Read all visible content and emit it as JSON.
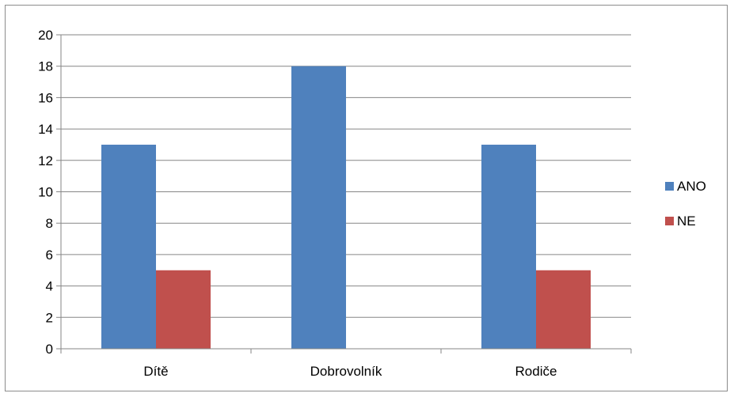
{
  "chart_data": {
    "type": "bar",
    "categories": [
      "Dítě",
      "Dobrovolník",
      "Rodiče"
    ],
    "series": [
      {
        "name": "ANO",
        "values": [
          13,
          18,
          13
        ],
        "color": "#4F81BD"
      },
      {
        "name": "NE",
        "values": [
          5,
          0,
          5
        ],
        "color": "#C0504D"
      }
    ],
    "ylim": [
      0,
      20
    ],
    "yticks": [
      0,
      2,
      4,
      6,
      8,
      10,
      12,
      14,
      16,
      18,
      20
    ],
    "grid": true,
    "legend": "right"
  }
}
